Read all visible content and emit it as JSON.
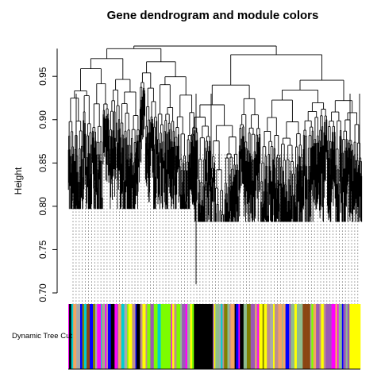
{
  "chart_data": {
    "type": "dendrogram",
    "title": "Gene dendrogram and module colors",
    "ylabel": "Height",
    "xlabel": "",
    "ylim": [
      0.7,
      0.985
    ],
    "yticks": [
      {
        "value": 0.7,
        "label": "0.70"
      },
      {
        "value": 0.75,
        "label": "0.75"
      },
      {
        "value": 0.8,
        "label": "0.80"
      },
      {
        "value": 0.85,
        "label": "0.85"
      },
      {
        "value": 0.9,
        "label": "0.90"
      },
      {
        "value": 0.95,
        "label": "0.95"
      }
    ],
    "leaf_guides": "dotted",
    "top_merge_height": 0.985,
    "clusters": [
      {
        "left_top": 0.982,
        "right_top": 0.98,
        "merge_height": 0.985,
        "min_leaf_height": 0.797
      },
      {
        "left_top": 0.965,
        "right_top": 0.975,
        "merge_height": 0.982,
        "min_leaf_height": 0.782
      }
    ],
    "color_row": {
      "label": "Dynamic Tree Cut",
      "module_colors": [
        "#7cfc00",
        "#9b59b6",
        "#8fbc8f",
        "#bc8f8f",
        "#8b4513",
        "#00ced1",
        "#ff00ff",
        "#f4a460",
        "#000000",
        "#a9a9a9",
        "#808000",
        "#ffff00",
        "#0000ff"
      ]
    }
  }
}
